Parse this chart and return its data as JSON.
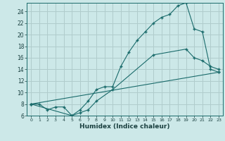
{
  "xlabel": "Humidex (Indice chaleur)",
  "bg_color": "#cce8e8",
  "grid_color": "#b0cccc",
  "line_color": "#1a6b6b",
  "xlim": [
    -0.5,
    23.5
  ],
  "ylim": [
    6,
    25.5
  ],
  "xticks": [
    0,
    1,
    2,
    3,
    4,
    5,
    6,
    7,
    8,
    9,
    10,
    11,
    12,
    13,
    14,
    15,
    16,
    17,
    18,
    19,
    20,
    21,
    22,
    23
  ],
  "yticks": [
    6,
    8,
    10,
    12,
    14,
    16,
    18,
    20,
    22,
    24
  ],
  "line1_x": [
    0,
    1,
    2,
    3,
    4,
    5,
    6,
    7,
    8,
    9,
    10,
    11,
    12,
    13,
    14,
    15,
    16,
    17,
    18,
    19,
    20,
    21,
    22,
    23
  ],
  "line1_y": [
    8,
    8,
    7,
    7.5,
    7.5,
    6,
    7,
    8.5,
    10.5,
    11,
    11,
    14.5,
    17,
    19,
    20.5,
    22,
    23,
    23.5,
    25,
    25.5,
    21,
    20.5,
    14,
    13.5
  ],
  "line2_x": [
    0,
    5,
    6,
    7,
    8,
    10,
    15,
    19,
    20,
    21,
    22,
    23
  ],
  "line2_y": [
    8,
    6,
    6.5,
    7,
    8.5,
    10.5,
    16.5,
    17.5,
    16,
    15.5,
    14.5,
    14
  ],
  "line3_x": [
    0,
    23
  ],
  "line3_y": [
    8,
    13.5
  ]
}
